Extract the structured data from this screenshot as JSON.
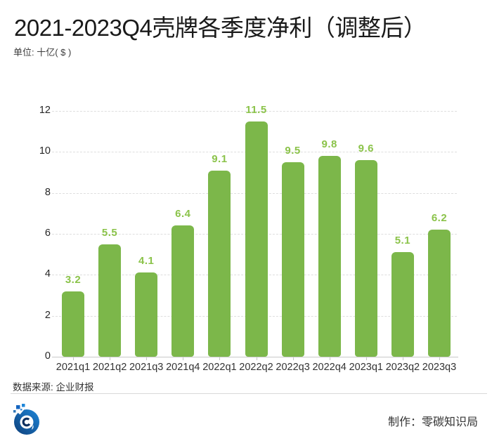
{
  "header": {
    "title": "2021-2023Q4壳牌各季度净利（调整后）",
    "subtitle": "单位: 十亿( $ )"
  },
  "chart_data": {
    "type": "bar",
    "categories": [
      "2021q1",
      "2021q2",
      "2021q3",
      "2021q4",
      "2022q1",
      "2022q2",
      "2022q3",
      "2022q4",
      "2023q1",
      "2023q2",
      "2023q3"
    ],
    "values": [
      3.2,
      5.5,
      4.1,
      6.4,
      9.1,
      11.5,
      9.5,
      9.8,
      9.6,
      5.1,
      6.2
    ],
    "title": "2021-2023Q4壳牌各季度净利（调整后）",
    "xlabel": "",
    "ylabel": "单位: 十亿( $ )",
    "ylim": [
      0,
      12
    ],
    "yticks": [
      0,
      2,
      4,
      6,
      8,
      10,
      12
    ],
    "grid": "horizontal-dashed",
    "legend": "none",
    "bar_color": "#7cb74a",
    "value_label_color": "#8bc34a"
  },
  "footer": {
    "source": "数据来源: 企业财报",
    "maker": "制作：零碳知识局"
  },
  "icons": {
    "logo": "zero-carbon-knowledge-bureau-logo",
    "logo_primary_color": "#1e86d8",
    "logo_secondary_color": "#0e3f7a"
  }
}
